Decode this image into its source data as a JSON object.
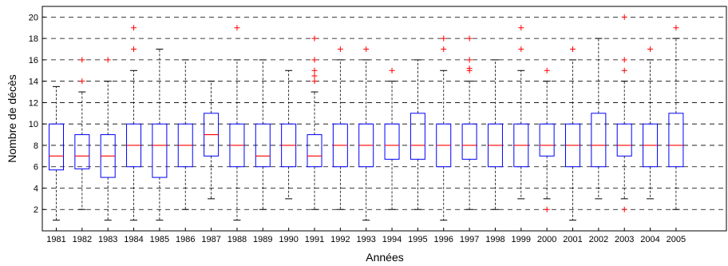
{
  "chart_data": {
    "type": "box",
    "xlabel": "Années",
    "ylabel": "Nombre de décès",
    "ylim": [
      0,
      21
    ],
    "yticks": [
      2,
      4,
      6,
      8,
      10,
      12,
      14,
      16,
      18,
      20
    ],
    "grid": "horizontal-dashed",
    "box_color": "#0000ff",
    "median_color": "#ff0000",
    "outlier_color": "#ff0000",
    "whisker_color": "#000000",
    "categories": [
      "1981",
      "1982",
      "1983",
      "1984",
      "1985",
      "1986",
      "1987",
      "1988",
      "1989",
      "1990",
      "1991",
      "1992",
      "1993",
      "1994",
      "1995",
      "1996",
      "1997",
      "1998",
      "1999",
      "2000",
      "2001",
      "2002",
      "2003",
      "2004",
      "2005"
    ],
    "boxes": [
      {
        "year": "1981",
        "whisker_low": 1,
        "q1": 5.7,
        "median": 7,
        "q3": 10,
        "whisker_high": 13.5,
        "outliers": []
      },
      {
        "year": "1982",
        "whisker_low": 2,
        "q1": 5.8,
        "median": 7,
        "q3": 9,
        "whisker_high": 13,
        "outliers": [
          14,
          16
        ]
      },
      {
        "year": "1983",
        "whisker_low": 1,
        "q1": 5,
        "median": 7,
        "q3": 9,
        "whisker_high": 14,
        "outliers": [
          16
        ]
      },
      {
        "year": "1984",
        "whisker_low": 1,
        "q1": 6,
        "median": 8,
        "q3": 10,
        "whisker_high": 15,
        "outliers": [
          17,
          19
        ]
      },
      {
        "year": "1985",
        "whisker_low": 1,
        "q1": 5,
        "median": 8,
        "q3": 10,
        "whisker_high": 17,
        "outliers": []
      },
      {
        "year": "1986",
        "whisker_low": 2,
        "q1": 6,
        "median": 8,
        "q3": 10,
        "whisker_high": 16,
        "outliers": []
      },
      {
        "year": "1987",
        "whisker_low": 3,
        "q1": 7,
        "median": 9,
        "q3": 11,
        "whisker_high": 14,
        "outliers": []
      },
      {
        "year": "1988",
        "whisker_low": 1,
        "q1": 6,
        "median": 8,
        "q3": 10,
        "whisker_high": 16,
        "outliers": [
          19
        ]
      },
      {
        "year": "1989",
        "whisker_low": 2,
        "q1": 6,
        "median": 7,
        "q3": 10,
        "whisker_high": 16,
        "outliers": []
      },
      {
        "year": "1990",
        "whisker_low": 3,
        "q1": 6,
        "median": 8,
        "q3": 10,
        "whisker_high": 15,
        "outliers": []
      },
      {
        "year": "1991",
        "whisker_low": 2,
        "q1": 6,
        "median": 7,
        "q3": 9,
        "whisker_high": 13,
        "outliers": [
          14,
          14.5,
          15,
          16,
          18
        ]
      },
      {
        "year": "1992",
        "whisker_low": 2,
        "q1": 6,
        "median": 8,
        "q3": 10,
        "whisker_high": 16,
        "outliers": [
          17
        ]
      },
      {
        "year": "1993",
        "whisker_low": 1,
        "q1": 6,
        "median": 8,
        "q3": 10,
        "whisker_high": 16,
        "outliers": [
          17
        ]
      },
      {
        "year": "1994",
        "whisker_low": 2,
        "q1": 6.7,
        "median": 8,
        "q3": 10,
        "whisker_high": 14,
        "outliers": [
          15
        ]
      },
      {
        "year": "1995",
        "whisker_low": 2,
        "q1": 6.7,
        "median": 8,
        "q3": 11,
        "whisker_high": 16,
        "outliers": []
      },
      {
        "year": "1996",
        "whisker_low": 1,
        "q1": 6,
        "median": 8,
        "q3": 10,
        "whisker_high": 15,
        "outliers": [
          17,
          18
        ]
      },
      {
        "year": "1997",
        "whisker_low": 2,
        "q1": 6.7,
        "median": 8,
        "q3": 10,
        "whisker_high": 14,
        "outliers": [
          15,
          15.2,
          16,
          18
        ]
      },
      {
        "year": "1998",
        "whisker_low": 2,
        "q1": 6,
        "median": 8,
        "q3": 10,
        "whisker_high": 16,
        "outliers": []
      },
      {
        "year": "1999",
        "whisker_low": 3,
        "q1": 6,
        "median": 8,
        "q3": 10,
        "whisker_high": 15,
        "outliers": [
          17,
          19
        ]
      },
      {
        "year": "2000",
        "whisker_low": 3,
        "q1": 7,
        "median": 8,
        "q3": 10,
        "whisker_high": 14,
        "outliers": [
          2,
          15
        ]
      },
      {
        "year": "2001",
        "whisker_low": 1,
        "q1": 6,
        "median": 8,
        "q3": 10,
        "whisker_high": 16,
        "outliers": [
          17
        ]
      },
      {
        "year": "2002",
        "whisker_low": 3,
        "q1": 6,
        "median": 8,
        "q3": 11,
        "whisker_high": 18,
        "outliers": []
      },
      {
        "year": "2003",
        "whisker_low": 3,
        "q1": 7,
        "median": 8,
        "q3": 10,
        "whisker_high": 14,
        "outliers": [
          2,
          15,
          16,
          20
        ]
      },
      {
        "year": "2004",
        "whisker_low": 3,
        "q1": 6,
        "median": 8,
        "q3": 10,
        "whisker_high": 16,
        "outliers": [
          17
        ]
      },
      {
        "year": "2005",
        "whisker_low": 2,
        "q1": 6,
        "median": 8,
        "q3": 11,
        "whisker_high": 18,
        "outliers": [
          19
        ]
      }
    ]
  }
}
